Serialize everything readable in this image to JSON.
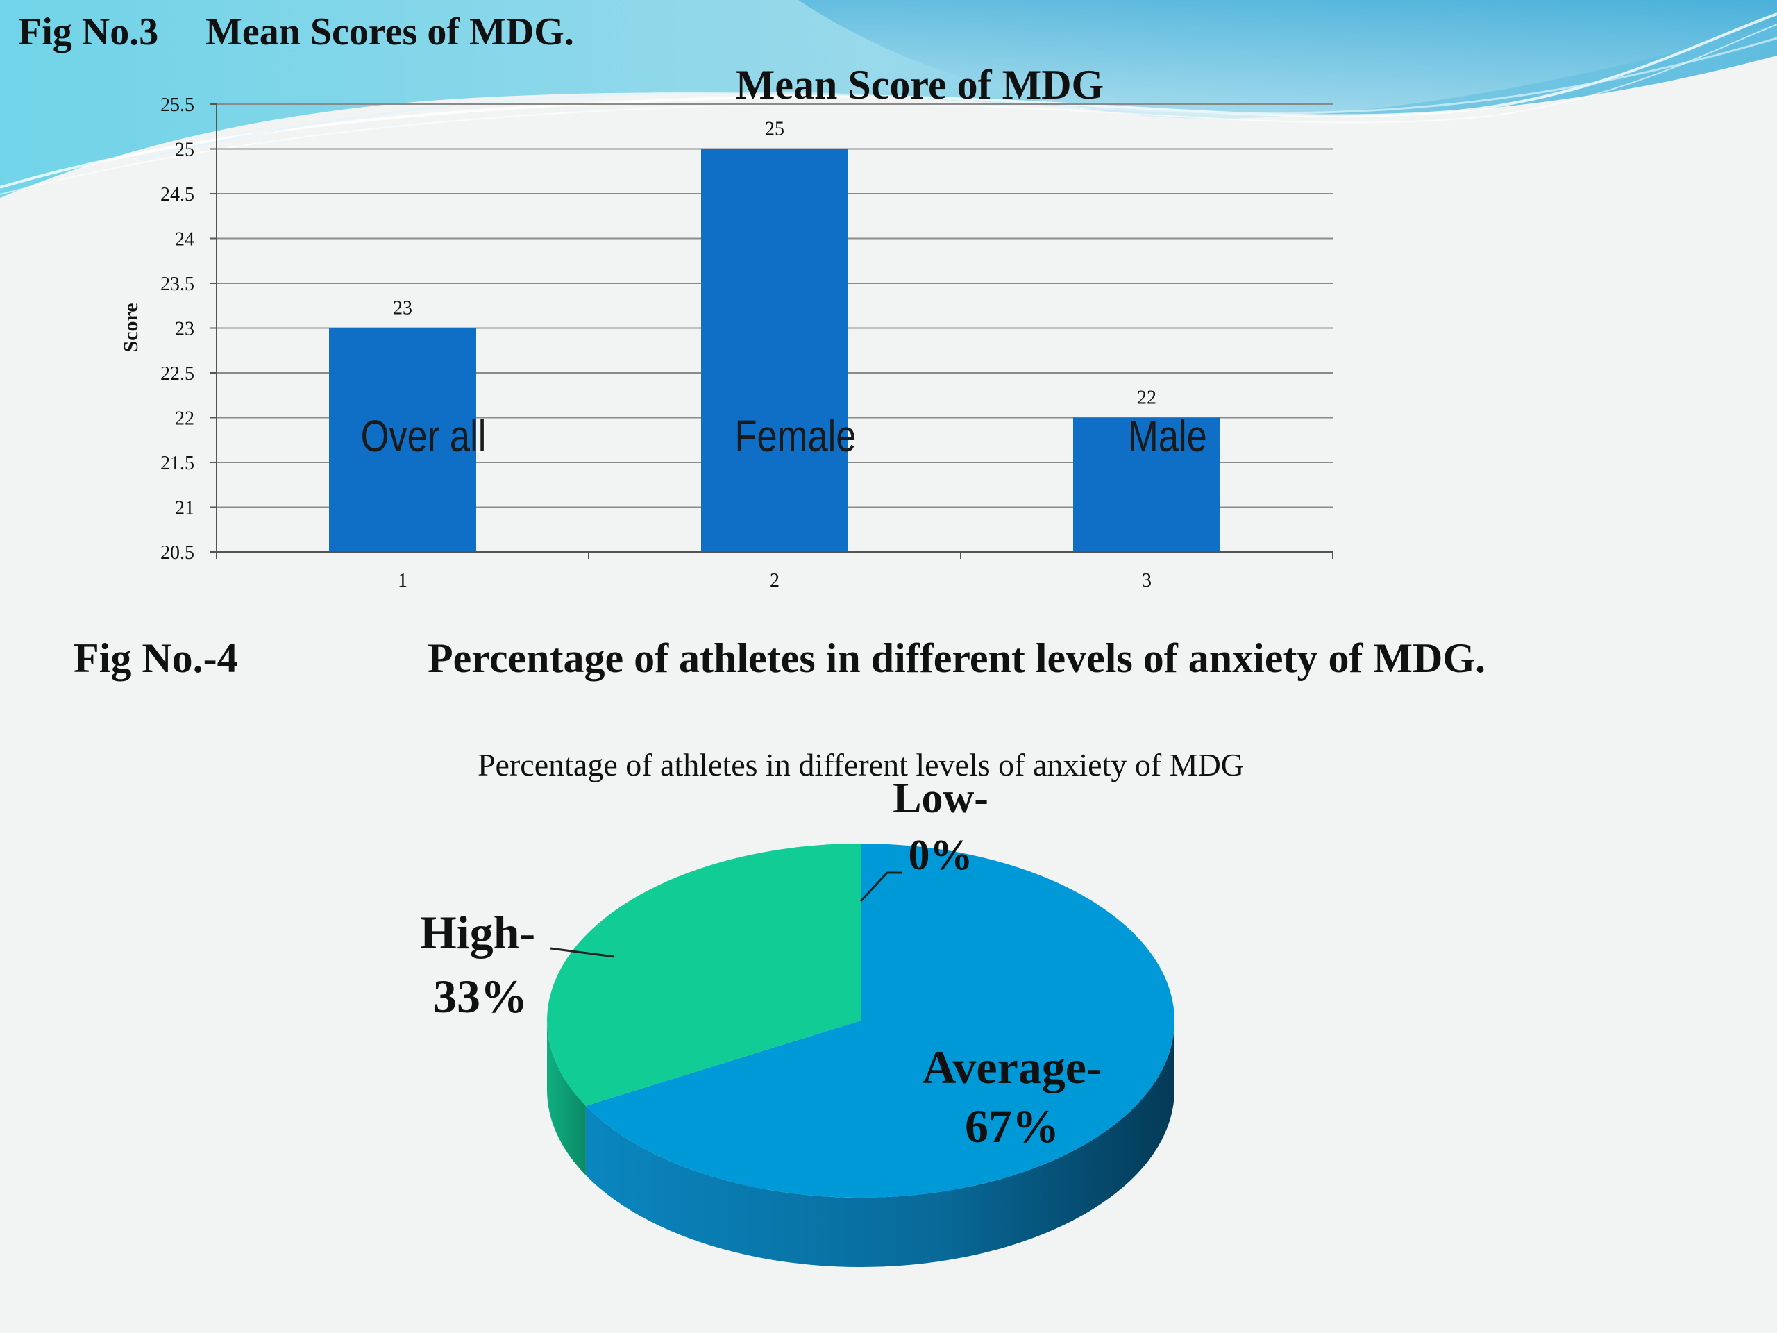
{
  "fig3": {
    "number": "Fig No.3",
    "caption": "Mean Scores of MDG."
  },
  "fig4": {
    "number": "Fig No.-4",
    "caption": "Percentage of athletes in different levels of anxiety of MDG."
  },
  "colors": {
    "bar": "#0f6fc6",
    "pie_average": "#0099d8",
    "pie_high": "#12cc96",
    "header_wave": "#5ec8e0"
  },
  "chart_data": [
    {
      "type": "bar",
      "title": "Mean Score of MDG",
      "xlabel": "",
      "ylabel": "Score",
      "categories": [
        "1",
        "2",
        "3"
      ],
      "bar_labels": [
        "Over all",
        "Female",
        "Male"
      ],
      "values": [
        23,
        25,
        22
      ],
      "data_labels": [
        "23",
        "25",
        "22"
      ],
      "ylim": [
        20.5,
        25.5
      ],
      "yticks": [
        "20.5",
        "21",
        "21.5",
        "22",
        "22.5",
        "23",
        "23.5",
        "24",
        "24.5",
        "25",
        "25.5"
      ],
      "grid": true
    },
    {
      "type": "pie",
      "title": "Percentage of athletes in different levels of anxiety of MDG",
      "slices": [
        {
          "label": "Low-",
          "value_label": "0%",
          "value": 0
        },
        {
          "label": "Average-",
          "value_label": "67%",
          "value": 67
        },
        {
          "label": "High-",
          "value_label": "33%",
          "value": 33
        }
      ]
    }
  ]
}
